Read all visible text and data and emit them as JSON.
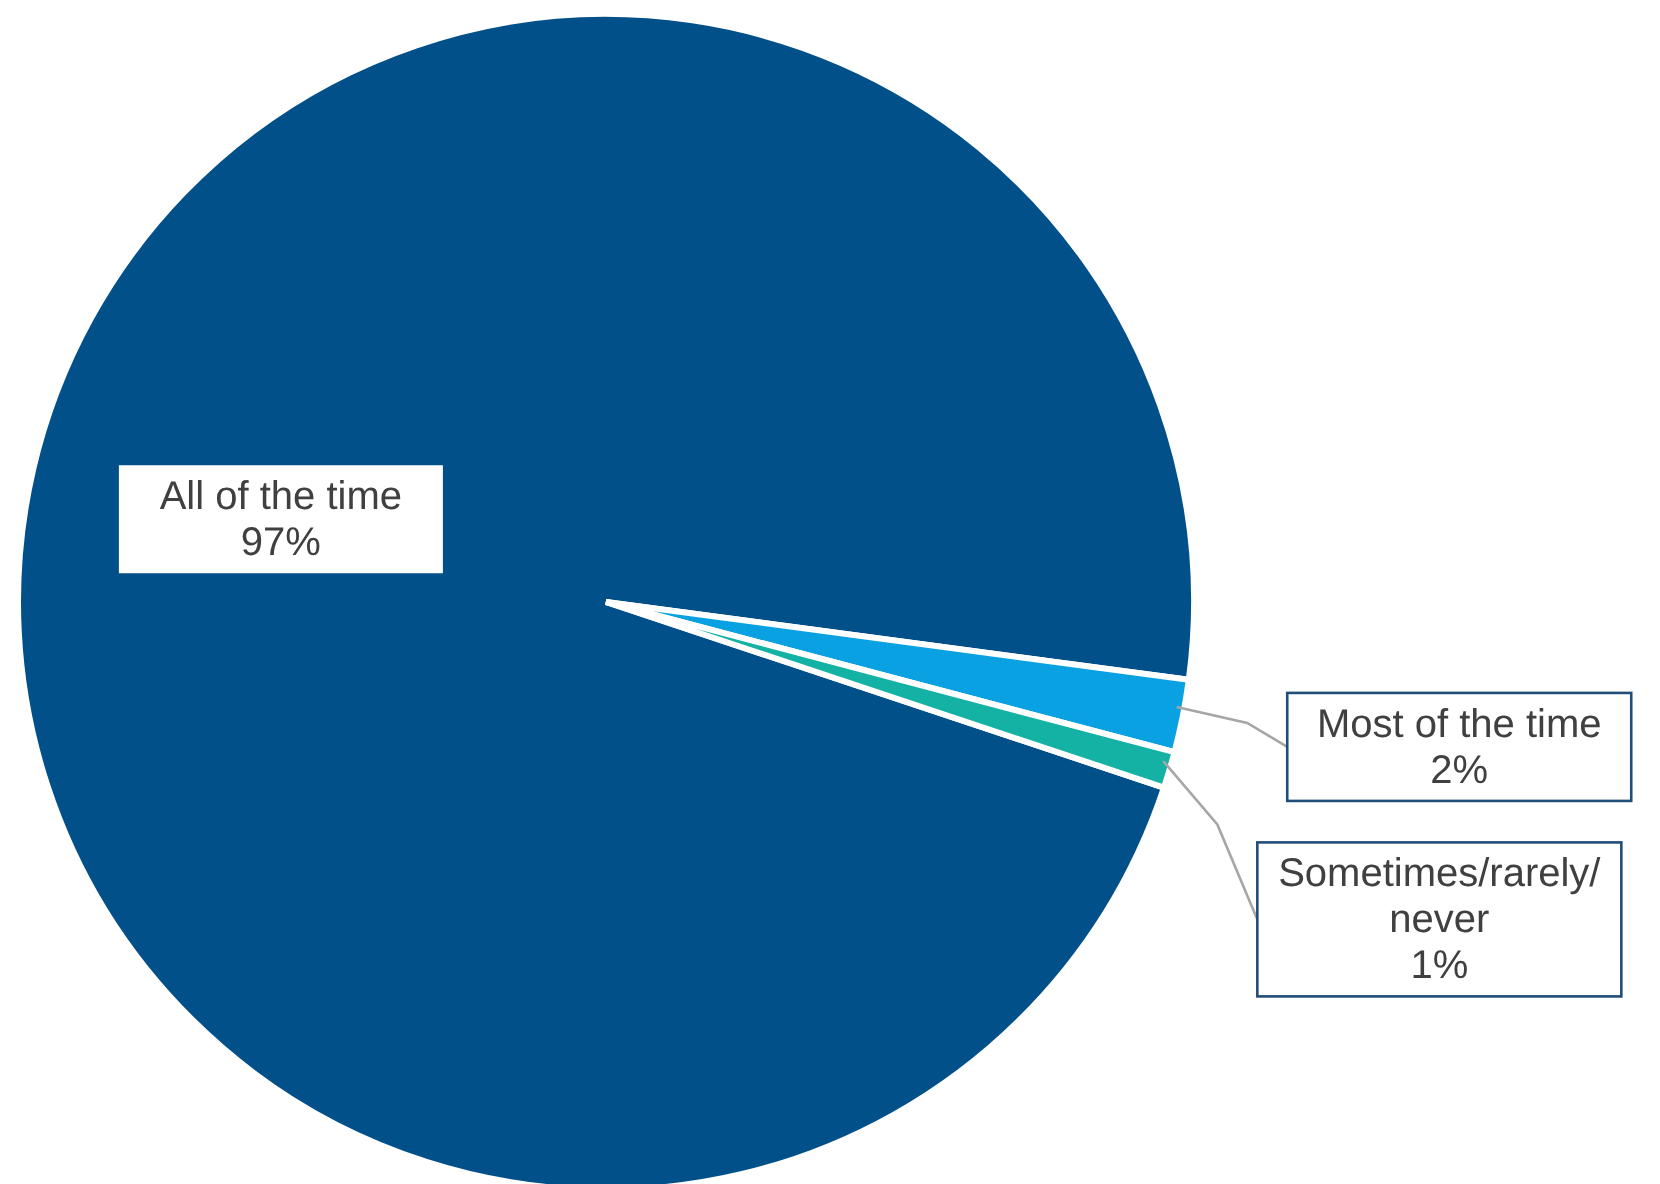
{
  "chart_data": {
    "type": "pie",
    "categories": [
      "All of the time",
      "Most of the time",
      "Sometimes/rarely/never"
    ],
    "values": [
      97,
      2,
      1
    ],
    "value_labels": [
      "97%",
      "2%",
      "1%"
    ],
    "colors": [
      "#02508a",
      "#0aa1e2",
      "#14b2a4"
    ]
  }
}
